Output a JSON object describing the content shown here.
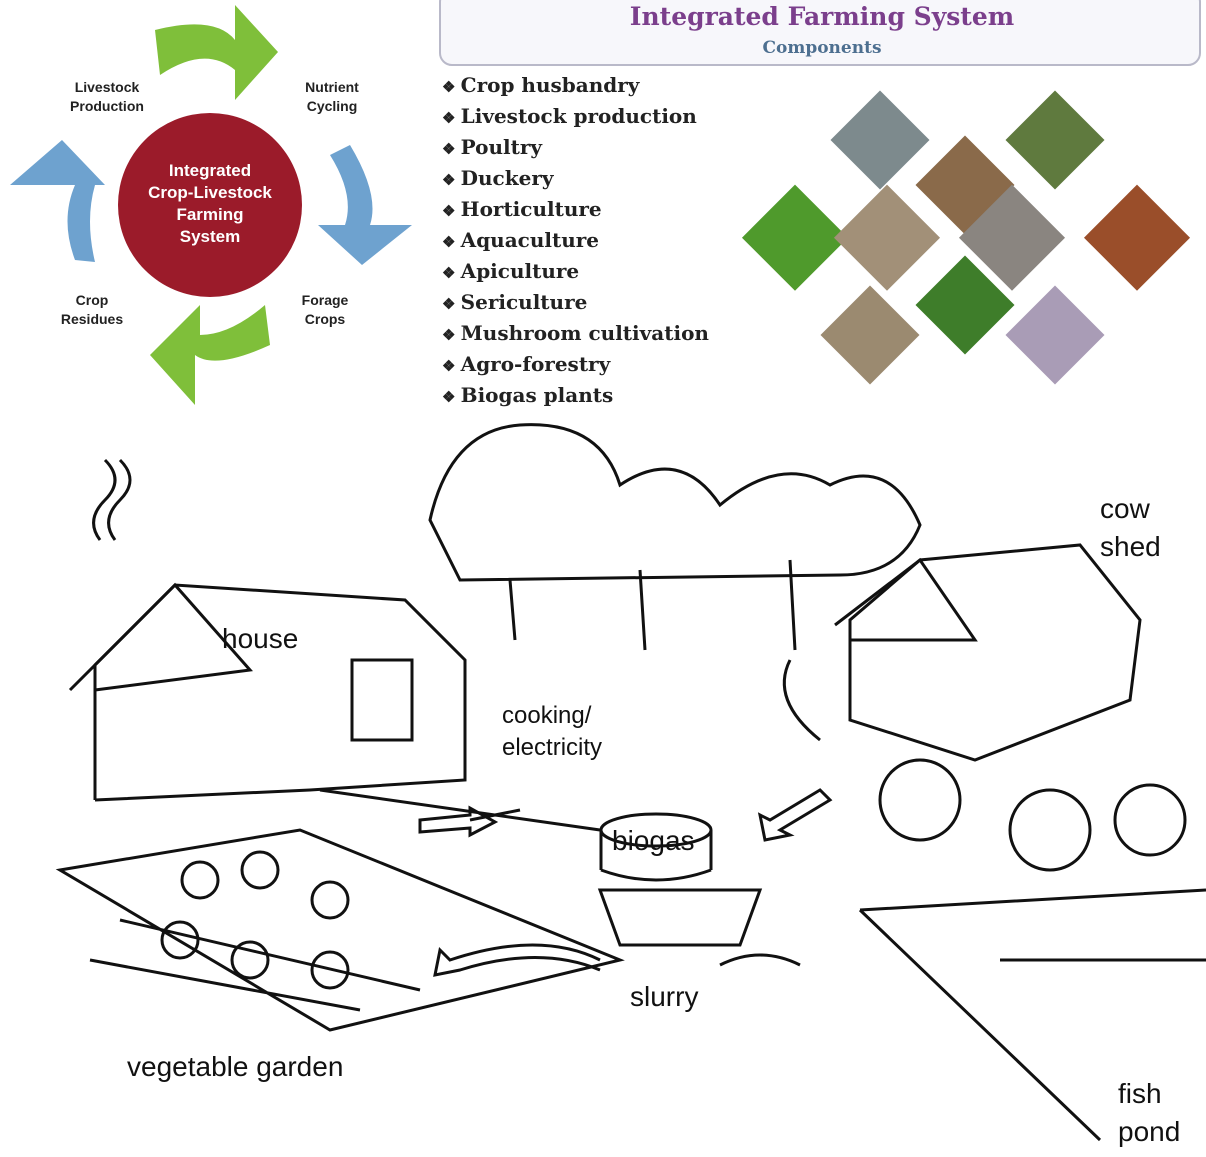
{
  "cycle": {
    "center": [
      "Integrated",
      "Crop-Livestock",
      "Farming",
      "System"
    ],
    "nodes": [
      "Livestock Production",
      "Nutrient Cycling",
      "Forage Crops",
      "Crop Residues"
    ]
  },
  "components": {
    "title": "Integrated Farming System",
    "subtitle": "Components",
    "items": [
      "Crop husbandry",
      "Livestock production",
      "Poultry",
      "Duckery",
      "Horticulture",
      "Aquaculture",
      "Apiculture",
      "Sericulture",
      "Mushroom cultivation",
      "Agro-forestry",
      "Biogas plants"
    ]
  },
  "illustration": {
    "house": "house",
    "cow_shed": "cow shed",
    "cooking": "cooking/ electricity",
    "biogas": "biogas",
    "slurry": "slurry",
    "garden": "vegetable garden",
    "pond": "fish pond"
  }
}
